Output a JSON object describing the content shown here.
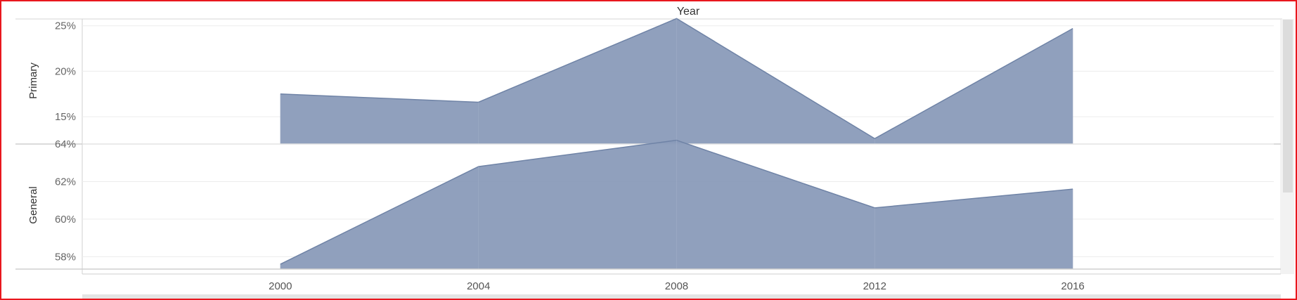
{
  "chart_data": {
    "type": "area",
    "column_header": "Year",
    "x": [
      2000,
      2004,
      2008,
      2012,
      2016
    ],
    "x_tick_labels": [
      "2000",
      "2004",
      "2008",
      "2012",
      "2016"
    ],
    "xlim": [
      1996,
      2020.2
    ],
    "fill_color": "#8a9bb9",
    "line_color": "#6f83a6",
    "panels": [
      {
        "id": "primary",
        "label": "Primary",
        "ylim": [
          12.0,
          25.75
        ],
        "y_ticks": [
          15,
          20,
          25
        ],
        "y_tick_labels": [
          "15%",
          "20%",
          "25%"
        ],
        "values": [
          17.5,
          16.6,
          25.8,
          12.6,
          24.7
        ]
      },
      {
        "id": "general",
        "label": "General",
        "ylim": [
          57.34,
          64.0
        ],
        "y_ticks": [
          58,
          60,
          62,
          64
        ],
        "y_tick_labels": [
          "58%",
          "60%",
          "62%",
          "64%"
        ],
        "values": [
          57.6,
          62.8,
          64.2,
          60.6,
          61.6
        ]
      }
    ]
  }
}
